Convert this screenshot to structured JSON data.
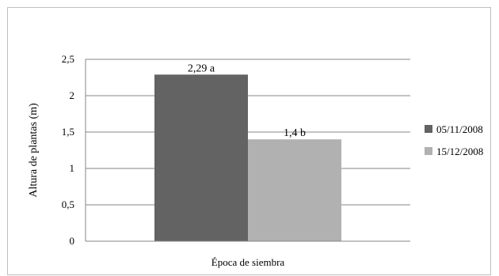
{
  "chart_data": {
    "type": "bar",
    "title": "",
    "xlabel": "Época de siembra",
    "ylabel": "Altura de plantas (m)",
    "ylim": [
      0,
      2.5
    ],
    "yticks": [
      "0",
      "0,5",
      "1",
      "1,5",
      "2",
      "2,5"
    ],
    "categories": [
      ""
    ],
    "grid": true,
    "legend_position": "right",
    "series": [
      {
        "name": "05/11/2008",
        "values": [
          2.29
        ],
        "label": "2,29 a",
        "color": "#636363"
      },
      {
        "name": "15/12/2008",
        "values": [
          1.4
        ],
        "label": "1,4 b",
        "color": "#b1b1b1"
      }
    ]
  }
}
